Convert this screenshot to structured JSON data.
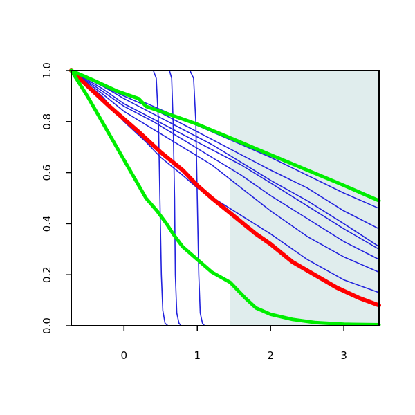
{
  "chart_data": {
    "type": "line",
    "title": "",
    "xlabel": "",
    "ylabel": "",
    "xlim": [
      -0.72,
      3.48
    ],
    "ylim": [
      0,
      1
    ],
    "x_ticks": [
      0,
      1,
      2,
      3
    ],
    "x_tick_labels": [
      "0",
      "1",
      "2",
      "3"
    ],
    "y_ticks": [
      0,
      0.2,
      0.4,
      0.6,
      0.8,
      1
    ],
    "y_tick_labels": [
      "0.0",
      "0.2",
      "0.4",
      "0.6",
      "0.8",
      "1.0"
    ],
    "grid": false,
    "shaded_region": {
      "x_from": 1.45,
      "x_to": 3.48,
      "color": "#e0eded"
    },
    "series": [
      {
        "color": "#2222dd",
        "width": 1.6,
        "points": [
          [
            -0.72,
            1
          ],
          [
            0.4,
            1
          ],
          [
            0.44,
            0.97
          ],
          [
            0.47,
            0.8
          ],
          [
            0.49,
            0.5
          ],
          [
            0.51,
            0.2
          ],
          [
            0.53,
            0.06
          ],
          [
            0.56,
            0.01
          ],
          [
            0.6,
            0
          ],
          [
            3.48,
            0
          ]
        ]
      },
      {
        "color": "#2222dd",
        "width": 1.6,
        "points": [
          [
            -0.72,
            1
          ],
          [
            0.62,
            1
          ],
          [
            0.65,
            0.97
          ],
          [
            0.67,
            0.8
          ],
          [
            0.69,
            0.5
          ],
          [
            0.7,
            0.2
          ],
          [
            0.72,
            0.05
          ],
          [
            0.75,
            0.01
          ],
          [
            0.78,
            0
          ],
          [
            3.48,
            0
          ]
        ]
      },
      {
        "color": "#2222dd",
        "width": 1.6,
        "points": [
          [
            -0.72,
            1
          ],
          [
            0.9,
            1
          ],
          [
            0.95,
            0.97
          ],
          [
            0.98,
            0.8
          ],
          [
            1,
            0.5
          ],
          [
            1.02,
            0.2
          ],
          [
            1.04,
            0.05
          ],
          [
            1.07,
            0.01
          ],
          [
            1.1,
            0
          ],
          [
            3.48,
            0
          ]
        ]
      },
      {
        "color": "#2222dd",
        "width": 1.6,
        "points": [
          [
            -0.72,
            1
          ],
          [
            -0.3,
            0.9
          ],
          [
            0,
            0.8
          ],
          [
            0.3,
            0.72
          ],
          [
            0.5,
            0.66
          ],
          [
            0.8,
            0.59
          ],
          [
            1,
            0.54
          ],
          [
            1.5,
            0.45
          ],
          [
            2,
            0.36
          ],
          [
            2.5,
            0.26
          ],
          [
            3,
            0.18
          ],
          [
            3.48,
            0.13
          ]
        ]
      },
      {
        "color": "#2222dd",
        "width": 1.6,
        "points": [
          [
            -0.72,
            1
          ],
          [
            -0.3,
            0.91
          ],
          [
            0,
            0.84
          ],
          [
            0.4,
            0.77
          ],
          [
            0.8,
            0.7
          ],
          [
            1.2,
            0.63
          ],
          [
            1.6,
            0.54
          ],
          [
            2,
            0.45
          ],
          [
            2.5,
            0.35
          ],
          [
            3,
            0.27
          ],
          [
            3.48,
            0.21
          ]
        ]
      },
      {
        "color": "#2222dd",
        "width": 1.6,
        "points": [
          [
            -0.72,
            1
          ],
          [
            -0.3,
            0.92
          ],
          [
            0,
            0.86
          ],
          [
            0.4,
            0.8
          ],
          [
            0.8,
            0.73
          ],
          [
            1.2,
            0.66
          ],
          [
            1.6,
            0.59
          ],
          [
            2,
            0.51
          ],
          [
            2.5,
            0.42
          ],
          [
            3,
            0.33
          ],
          [
            3.48,
            0.26
          ]
        ]
      },
      {
        "color": "#2222dd",
        "width": 1.6,
        "points": [
          [
            -0.72,
            1
          ],
          [
            -0.3,
            0.93
          ],
          [
            0,
            0.87
          ],
          [
            0.4,
            0.81
          ],
          [
            0.8,
            0.75
          ],
          [
            1.2,
            0.69
          ],
          [
            1.6,
            0.63
          ],
          [
            2,
            0.56
          ],
          [
            2.5,
            0.47
          ],
          [
            3,
            0.38
          ],
          [
            3.48,
            0.3
          ]
        ]
      },
      {
        "color": "#2222dd",
        "width": 1.6,
        "points": [
          [
            -0.72,
            1
          ],
          [
            -0.3,
            0.94
          ],
          [
            0,
            0.89
          ],
          [
            0.4,
            0.83
          ],
          [
            0.8,
            0.77
          ],
          [
            1.2,
            0.71
          ],
          [
            1.6,
            0.64
          ],
          [
            2,
            0.57
          ],
          [
            2.5,
            0.49
          ],
          [
            3,
            0.4
          ],
          [
            3.48,
            0.31
          ]
        ]
      },
      {
        "color": "#2222dd",
        "width": 1.6,
        "points": [
          [
            -0.72,
            1
          ],
          [
            -0.3,
            0.94
          ],
          [
            0,
            0.9
          ],
          [
            0.4,
            0.85
          ],
          [
            0.8,
            0.79
          ],
          [
            1.2,
            0.73
          ],
          [
            1.6,
            0.67
          ],
          [
            2,
            0.61
          ],
          [
            2.5,
            0.54
          ],
          [
            3,
            0.45
          ],
          [
            3.48,
            0.38
          ]
        ]
      },
      {
        "color": "#2222dd",
        "width": 1.6,
        "points": [
          [
            -0.72,
            1
          ],
          [
            -0.3,
            0.95
          ],
          [
            0,
            0.91
          ],
          [
            0.4,
            0.86
          ],
          [
            0.8,
            0.81
          ],
          [
            1.2,
            0.76
          ],
          [
            1.6,
            0.71
          ],
          [
            2,
            0.66
          ],
          [
            2.5,
            0.59
          ],
          [
            3,
            0.52
          ],
          [
            3.48,
            0.46
          ]
        ]
      },
      {
        "color": "#ff0000",
        "width": 6,
        "points": [
          [
            -0.72,
            1
          ],
          [
            -0.5,
            0.94
          ],
          [
            -0.2,
            0.86
          ],
          [
            0,
            0.81
          ],
          [
            0.2,
            0.76
          ],
          [
            0.5,
            0.68
          ],
          [
            0.8,
            0.61
          ],
          [
            1,
            0.55
          ],
          [
            1.2,
            0.5
          ],
          [
            1.5,
            0.43
          ],
          [
            1.8,
            0.36
          ],
          [
            2,
            0.32
          ],
          [
            2.3,
            0.25
          ],
          [
            2.6,
            0.2
          ],
          [
            2.9,
            0.15
          ],
          [
            3.2,
            0.11
          ],
          [
            3.48,
            0.08
          ]
        ]
      },
      {
        "color": "#00ee00",
        "width": 5,
        "points": [
          [
            -0.72,
            1
          ],
          [
            -0.5,
            0.9
          ],
          [
            -0.3,
            0.8
          ],
          [
            -0.1,
            0.7
          ],
          [
            0.1,
            0.6
          ],
          [
            0.3,
            0.5
          ],
          [
            0.45,
            0.45
          ],
          [
            0.58,
            0.4
          ],
          [
            0.67,
            0.36
          ],
          [
            0.8,
            0.31
          ],
          [
            1,
            0.26
          ],
          [
            1.2,
            0.21
          ],
          [
            1.45,
            0.17
          ],
          [
            1.65,
            0.11
          ],
          [
            1.8,
            0.07
          ],
          [
            2,
            0.045
          ],
          [
            2.3,
            0.025
          ],
          [
            2.6,
            0.013
          ],
          [
            3,
            0.006
          ],
          [
            3.48,
            0.004
          ]
        ]
      },
      {
        "color": "#00ee00",
        "width": 5,
        "points": [
          [
            -0.72,
            1
          ],
          [
            -0.4,
            0.96
          ],
          [
            -0.1,
            0.92
          ],
          [
            0.2,
            0.89
          ],
          [
            0.3,
            0.86
          ],
          [
            0.6,
            0.83
          ],
          [
            1,
            0.79
          ],
          [
            1.5,
            0.73
          ],
          [
            2,
            0.67
          ],
          [
            2.5,
            0.61
          ],
          [
            3,
            0.55
          ],
          [
            3.48,
            0.49
          ]
        ]
      }
    ]
  }
}
